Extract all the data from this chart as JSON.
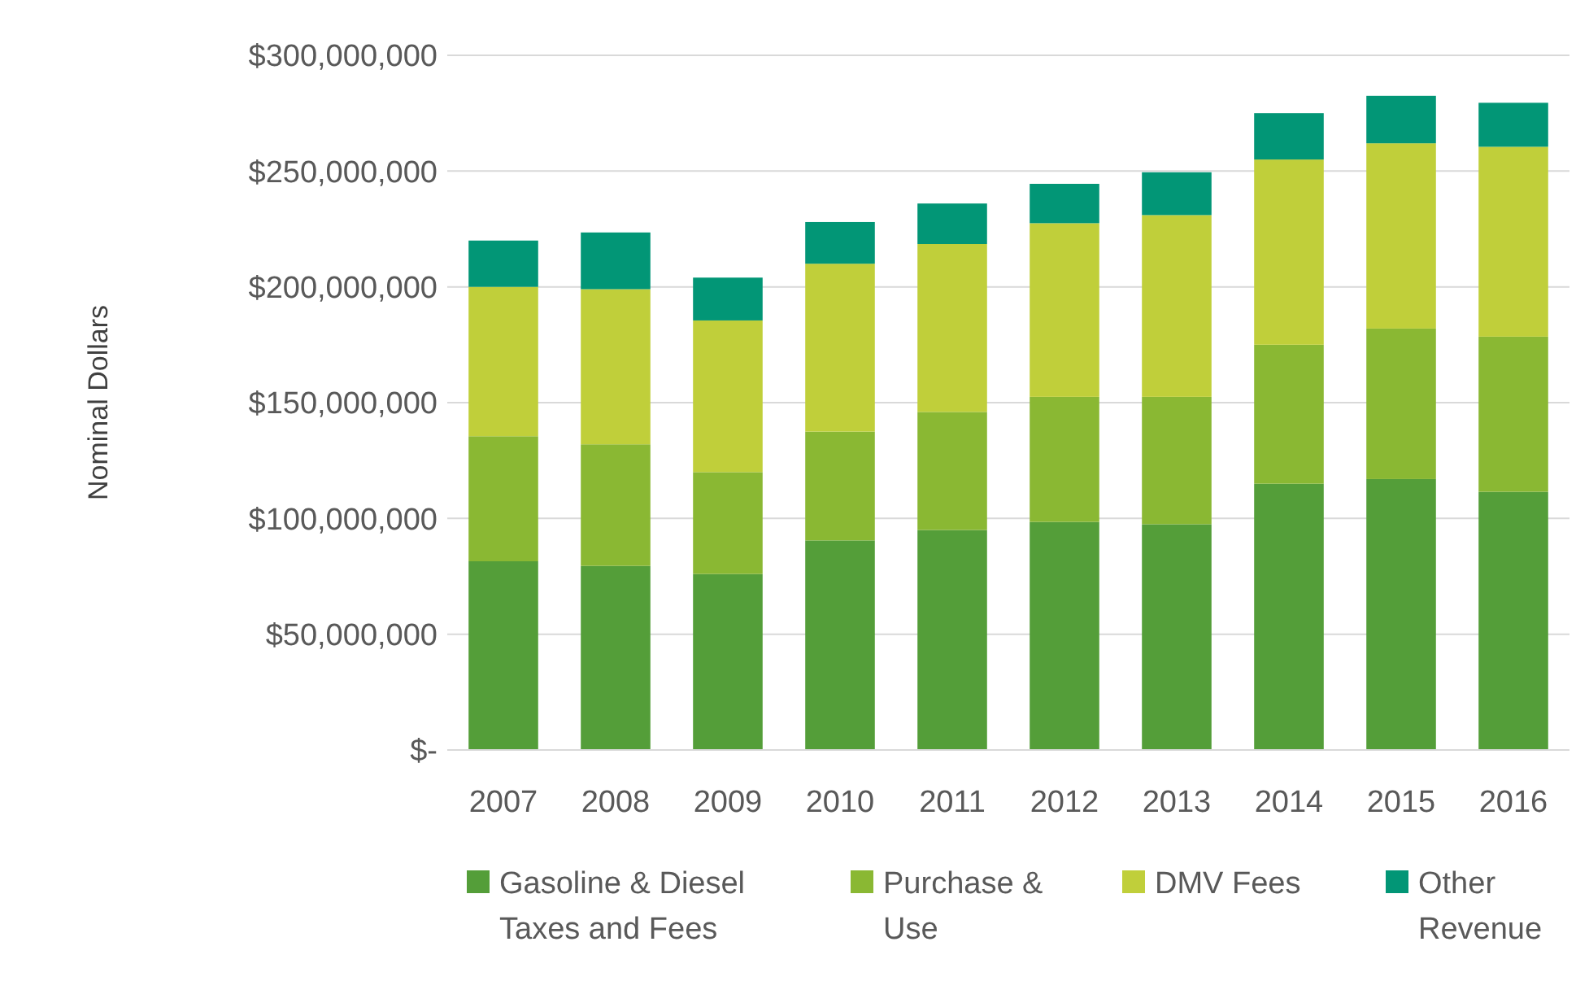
{
  "chart_data": {
    "type": "bar",
    "stacked": true,
    "ylabel": "Nominal Dollars",
    "categories": [
      "2007",
      "2008",
      "2009",
      "2010",
      "2011",
      "2012",
      "2013",
      "2014",
      "2015",
      "2016"
    ],
    "series": [
      {
        "name": "Gasoline & Diesel Taxes and Fees",
        "color": "#549e39",
        "values": [
          81500000,
          79500000,
          76000000,
          90500000,
          95000000,
          98500000,
          97500000,
          115000000,
          117000000,
          111500000
        ]
      },
      {
        "name": "Purchase & Use",
        "color": "#8ab833",
        "values": [
          54000000,
          52500000,
          44000000,
          47000000,
          51000000,
          54000000,
          55000000,
          60000000,
          65000000,
          67000000
        ]
      },
      {
        "name": "DMV Fees",
        "color": "#c0cf3a",
        "values": [
          64500000,
          67000000,
          65500000,
          72500000,
          72500000,
          75000000,
          78500000,
          80000000,
          80000000,
          82000000
        ]
      },
      {
        "name": "Other Revenue",
        "color": "#029676",
        "values": [
          20000000,
          24500000,
          18500000,
          18000000,
          17500000,
          17000000,
          18500000,
          20000000,
          20500000,
          19000000
        ]
      }
    ],
    "ylim": [
      0,
      300000000
    ],
    "yticks": [
      {
        "value": 0,
        "label": "$-"
      },
      {
        "value": 50000000,
        "label": "$50,000,000"
      },
      {
        "value": 100000000,
        "label": "$100,000,000"
      },
      {
        "value": 150000000,
        "label": "$150,000,000"
      },
      {
        "value": 200000000,
        "label": "$200,000,000"
      },
      {
        "value": 250000000,
        "label": "$250,000,000"
      },
      {
        "value": 300000000,
        "label": "$300,000,000"
      }
    ],
    "grid": "y",
    "legend": "bottom"
  }
}
